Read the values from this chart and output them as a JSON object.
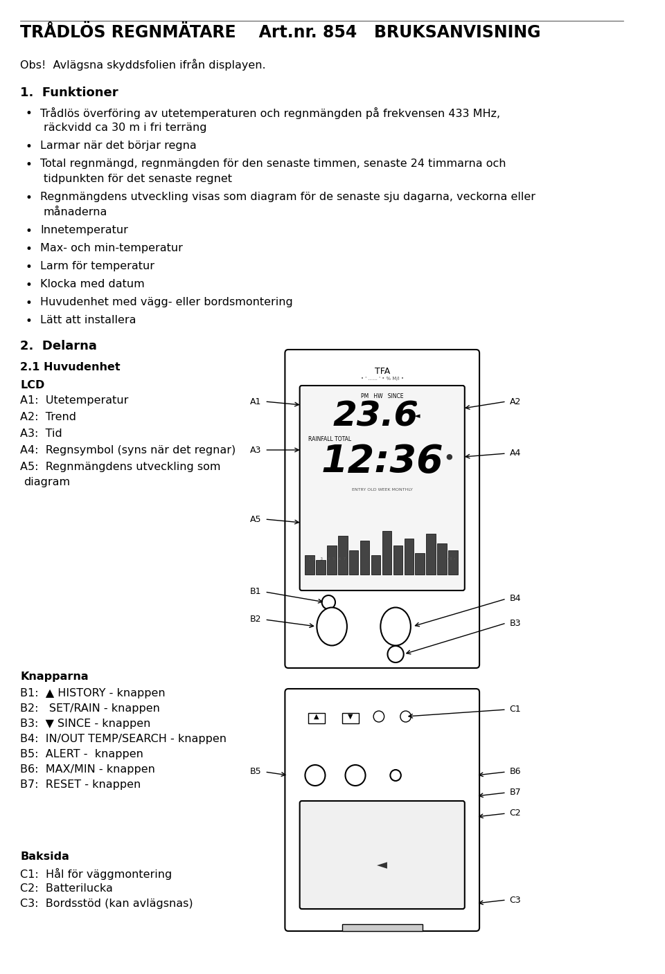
{
  "title": "TRÅDLÖS REGNMÄTARE    Art.nr. 854   BRUKSANVISNING",
  "obs_text": "Obs!  Avlägsna skyddsfolien ifrån displayen.",
  "section1_title": "1.  Funktioner",
  "bullets1": [
    "Trådlös överföring av utetemperaturen och regnmängden på frekvensen 433 MHz,\n    räckvidd ca 30 m i fri terräng",
    "Larmar när det börjar regna",
    "Total regnmängd, regnmängden för den senaste timmen, senaste 24 timmarna och\n    tidpunkten för det senaste regnet",
    "Regnmängdens utveckling visas som diagram för de senaste sju dagarna, veckorna eller\n    månaderna",
    "Innetemperatur",
    "Max- och min-temperatur",
    "Larm för temperatur",
    "Klocka med datum",
    "Huvudenhet med vägg- eller bordsmontering",
    "Lätt att installera"
  ],
  "section2_title": "2.  Delarna",
  "section21_title": "2.1 Huvudenhet",
  "lcd_title": "LCD",
  "lcd_items": [
    "A1:  Utetemperatur",
    "A2:  Trend",
    "A3:  Tid",
    "A4:  Regnsymbol (syns när det regnar)",
    "A5:  Regnmängdens utveckling som\n       diagram"
  ],
  "knapp_title": "Knapparna",
  "knapp_items": [
    "B1:  ▲ HISTORY - knappen",
    "B2:   SET/RAIN - knappen",
    "B3:  ▼ SINCE - knappen",
    "B4:  IN/OUT TEMP/SEARCH - knappen",
    "B5:  ALERT -  knappen",
    "B6:  MAX/MIN - knappen",
    "B7:  RESET - knappen"
  ],
  "baksida_title": "Baksida",
  "baksida_items": [
    "C1:  Hål för väggmontering",
    "C2:  Batterilucka",
    "C3:  Bordsstöd (kan avlägsnas)"
  ],
  "bg_color": "#ffffff",
  "text_color": "#000000",
  "font_size_title": 18,
  "font_size_body": 11
}
